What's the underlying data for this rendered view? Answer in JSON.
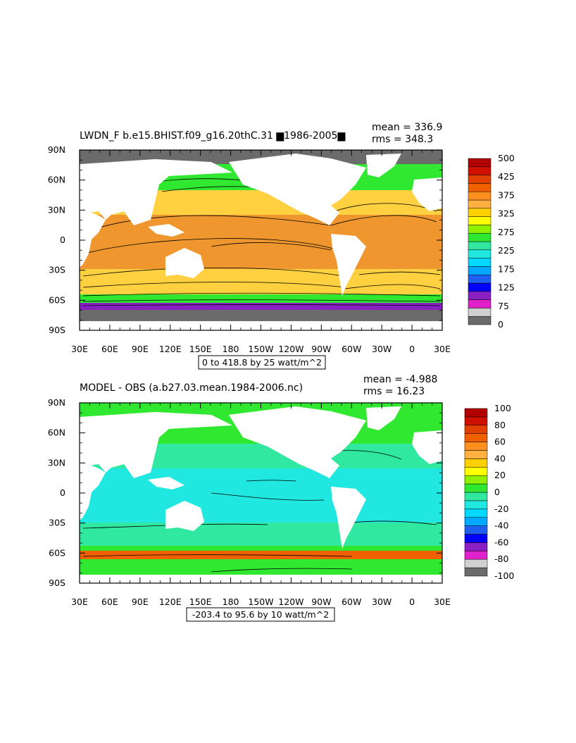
{
  "chart_data": [
    {
      "type": "heatmap",
      "title": "LWDN_F b.e15.BHIST.f09_g16.20thC.31 ▆1986-2005▆",
      "stats": {
        "mean": "mean = 336.9",
        "rms": "rms = 348.3"
      },
      "info": "0 to 418.8 by 25 watt/m^2",
      "xticks": [
        "30E",
        "60E",
        "90E",
        "120E",
        "150E",
        "180",
        "150W",
        "120W",
        "90W",
        "60W",
        "30W",
        "0",
        "30E"
      ],
      "yticks": [
        "90N",
        "60N",
        "30N",
        "0",
        "30S",
        "60S",
        "90S"
      ],
      "xlim": [
        "30E",
        "30E"
      ],
      "ylim": [
        "90S",
        "90N"
      ],
      "colorbar": {
        "labels": [
          "500",
          "425",
          "375",
          "325",
          "275",
          "225",
          "175",
          "125",
          "75",
          "0"
        ],
        "colors": [
          "#6b6b6b",
          "#d0d0d0",
          "#e020c8",
          "#8a1fc4",
          "#0000ff",
          "#2060f0",
          "#00a8ff",
          "#00d8ff",
          "#20e8e0",
          "#30e8a0",
          "#30e830",
          "#90f000",
          "#ffff00",
          "#ffd000",
          "#ffb040",
          "#ff9020",
          "#f06000",
          "#e04000",
          "#d01000",
          "#b00000"
        ]
      },
      "fields": {
        "polar_north": "#6b6b6b",
        "subpolar_north": "#30e830",
        "mid_north": "#ffd040",
        "tropics": "#f0962e",
        "mid_south": "#ffd040",
        "southern_ocean": "#30e830",
        "antarctic_edge": "#8a1fc4",
        "antarctic": "#6b6b6b"
      }
    },
    {
      "type": "heatmap",
      "title": "MODEL - OBS (a.b27.03.mean.1984-2006.nc)",
      "stats": {
        "mean": "mean = -4.988",
        "rms": "rms = 16.23"
      },
      "info": "-203.4 to 95.6 by 10 watt/m^2",
      "xticks": [
        "30E",
        "60E",
        "90E",
        "120E",
        "150E",
        "180",
        "150W",
        "120W",
        "90W",
        "60W",
        "30W",
        "0",
        "30E"
      ],
      "yticks": [
        "90N",
        "60N",
        "30N",
        "0",
        "30S",
        "60S",
        "90S"
      ],
      "xlim": [
        "30E",
        "30E"
      ],
      "ylim": [
        "90S",
        "90N"
      ],
      "colorbar": {
        "labels": [
          "100",
          "80",
          "60",
          "40",
          "20",
          "0",
          "-20",
          "-40",
          "-60",
          "-80",
          "-100"
        ],
        "colors": [
          "#6b6b6b",
          "#d0d0d0",
          "#e020c8",
          "#8a1fc4",
          "#0000ff",
          "#2060f0",
          "#00a8ff",
          "#00d8ff",
          "#20e8e0",
          "#30e8a0",
          "#30e830",
          "#90f000",
          "#ffff00",
          "#ffd000",
          "#ffb040",
          "#ff9020",
          "#f06000",
          "#e04000",
          "#d01000",
          "#b00000"
        ]
      },
      "fields": {
        "polar_north": "#30e830",
        "subpolar_north": "#30e830",
        "mid_north": "#30e8a0",
        "tropics": "#20e8e0",
        "mid_south": "#30e8a0",
        "southern_ocean": "#30e830",
        "antarctic_edge": "#f06000",
        "antarctic": "#30e830"
      }
    }
  ]
}
